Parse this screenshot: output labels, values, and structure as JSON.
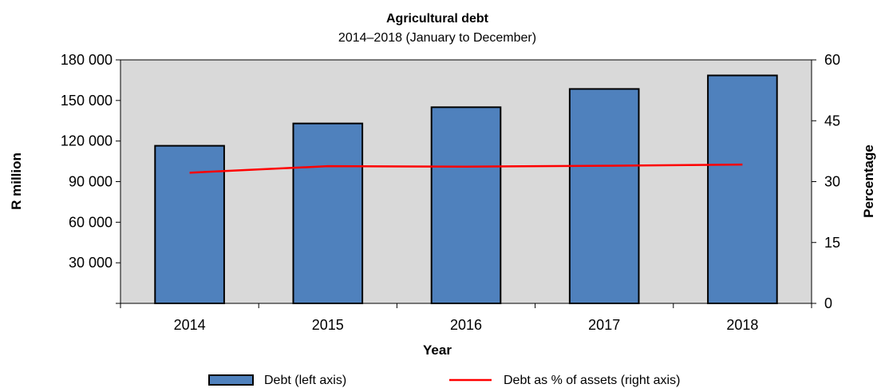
{
  "chart_data": {
    "type": "bar",
    "title": "Agricultural debt",
    "subtitle": "2014–2018 (January to December)",
    "categories": [
      "2014",
      "2015",
      "2016",
      "2017",
      "2018"
    ],
    "series": [
      {
        "name": "Debt (left axis)",
        "type": "bar",
        "axis": "left",
        "color": "#4f81bd",
        "values": [
          116500,
          133000,
          145000,
          158500,
          168500
        ]
      },
      {
        "name": "Debt as % of assets (right axis)",
        "type": "line",
        "axis": "right",
        "color": "#ff0000",
        "values": [
          32.2,
          33.8,
          33.7,
          33.9,
          34.2
        ]
      }
    ],
    "xlabel": "Year",
    "ylabel": "R million",
    "y2label": "Percentage",
    "ylim": [
      0,
      180000
    ],
    "y2lim": [
      0,
      60
    ],
    "yticks": [
      "",
      "30 000",
      "60 000",
      "90 000",
      "120 000",
      "150 000",
      "180 000"
    ],
    "y2ticks": [
      "0",
      "15",
      "30",
      "45",
      "60"
    ],
    "plot_background": "#d9d9d9",
    "grid": false,
    "legend_position": "bottom"
  }
}
